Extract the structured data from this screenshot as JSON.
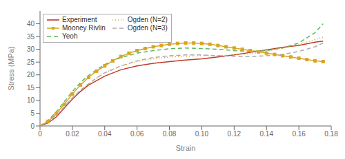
{
  "chart_data": {
    "type": "line",
    "xlabel": "Strain",
    "ylabel": "Stress (MPa)",
    "xlim": [
      0,
      0.18
    ],
    "ylim": [
      0,
      45
    ],
    "xticks": [
      0,
      0.02,
      0.04,
      0.06,
      0.08,
      {
        "value": 0.1,
        "label": "0.10"
      },
      0.12,
      0.14,
      0.16,
      0.18
    ],
    "yticks": [
      0,
      5,
      10,
      15,
      20,
      25,
      30,
      35,
      40
    ],
    "grid": false,
    "legend": "upper left",
    "series": [
      {
        "name": "Experiment",
        "color": "#c0392b",
        "line_style": "solid",
        "x": [
          0,
          0.005,
          0.01,
          0.015,
          0.02,
          0.025,
          0.03,
          0.04,
          0.05,
          0.06,
          0.07,
          0.08,
          0.09,
          0.1,
          0.11,
          0.12,
          0.13,
          0.14,
          0.15,
          0.16,
          0.17,
          0.175
        ],
        "values": [
          0,
          1.2,
          3.5,
          7.0,
          10.5,
          13.5,
          16.0,
          19.5,
          22.0,
          23.5,
          24.5,
          25.2,
          25.8,
          26.3,
          27.0,
          27.8,
          28.8,
          29.8,
          30.8,
          31.5,
          32.8,
          33.2
        ]
      },
      {
        "name": "Mooney Rivlin",
        "color": "#DAA520",
        "line_style": "solid",
        "marker": "square",
        "x": [
          0,
          0.005,
          0.01,
          0.015,
          0.02,
          0.025,
          0.03,
          0.035,
          0.04,
          0.045,
          0.05,
          0.055,
          0.06,
          0.065,
          0.07,
          0.075,
          0.08,
          0.085,
          0.09,
          0.095,
          0.1,
          0.105,
          0.11,
          0.115,
          0.12,
          0.125,
          0.13,
          0.135,
          0.14,
          0.145,
          0.15,
          0.155,
          0.16,
          0.165,
          0.17,
          0.175
        ],
        "values": [
          0,
          1.8,
          4.8,
          8.5,
          12.5,
          16.0,
          19.0,
          21.5,
          23.5,
          25.5,
          27.2,
          28.5,
          29.5,
          30.3,
          31.0,
          31.5,
          32.0,
          32.3,
          32.5,
          32.5,
          32.3,
          32.0,
          31.5,
          31.0,
          30.5,
          30.0,
          29.5,
          29.0,
          28.5,
          28.0,
          27.5,
          27.0,
          26.5,
          26.0,
          25.5,
          25.2
        ]
      },
      {
        "name": "Yeoh",
        "color": "#5cb85c",
        "line_style": "dashed",
        "x": [
          0,
          0.005,
          0.01,
          0.015,
          0.02,
          0.025,
          0.03,
          0.035,
          0.04,
          0.045,
          0.05,
          0.06,
          0.07,
          0.08,
          0.09,
          0.1,
          0.11,
          0.12,
          0.13,
          0.14,
          0.15,
          0.16,
          0.17,
          0.175
        ],
        "values": [
          0,
          2.2,
          5.5,
          9.5,
          13.5,
          17.0,
          19.8,
          22.0,
          24.0,
          25.5,
          26.8,
          28.5,
          29.5,
          30.2,
          30.5,
          30.3,
          30.0,
          29.5,
          29.2,
          29.5,
          30.5,
          32.5,
          36.5,
          40.0
        ]
      },
      {
        "name": "Ogden (N=2)",
        "color": "#DAA520",
        "line_style": "dotted",
        "x": [
          0,
          0.005,
          0.01,
          0.015,
          0.02,
          0.025,
          0.03,
          0.035,
          0.04,
          0.05,
          0.06,
          0.07,
          0.08,
          0.09,
          0.1,
          0.11,
          0.12,
          0.13,
          0.14,
          0.15,
          0.16,
          0.17,
          0.175
        ],
        "values": [
          0,
          1.5,
          4.0,
          7.5,
          11.0,
          14.0,
          16.5,
          18.8,
          20.8,
          23.5,
          25.2,
          26.3,
          27.0,
          27.3,
          27.5,
          27.5,
          27.8,
          28.3,
          29.2,
          30.5,
          32.0,
          33.8,
          34.8
        ]
      },
      {
        "name": "Ogden (N=3)",
        "color": "#aaaaaa",
        "line_style": "dashed",
        "x": [
          0,
          0.005,
          0.01,
          0.015,
          0.02,
          0.025,
          0.03,
          0.035,
          0.04,
          0.05,
          0.06,
          0.07,
          0.08,
          0.09,
          0.1,
          0.11,
          0.12,
          0.13,
          0.14,
          0.15,
          0.16,
          0.17,
          0.175
        ],
        "values": [
          0,
          1.5,
          4.0,
          7.5,
          11.0,
          14.0,
          16.5,
          18.8,
          20.8,
          23.5,
          25.5,
          26.8,
          27.5,
          27.8,
          27.8,
          27.5,
          27.3,
          27.2,
          27.5,
          28.0,
          29.2,
          31.0,
          32.5
        ]
      }
    ]
  }
}
